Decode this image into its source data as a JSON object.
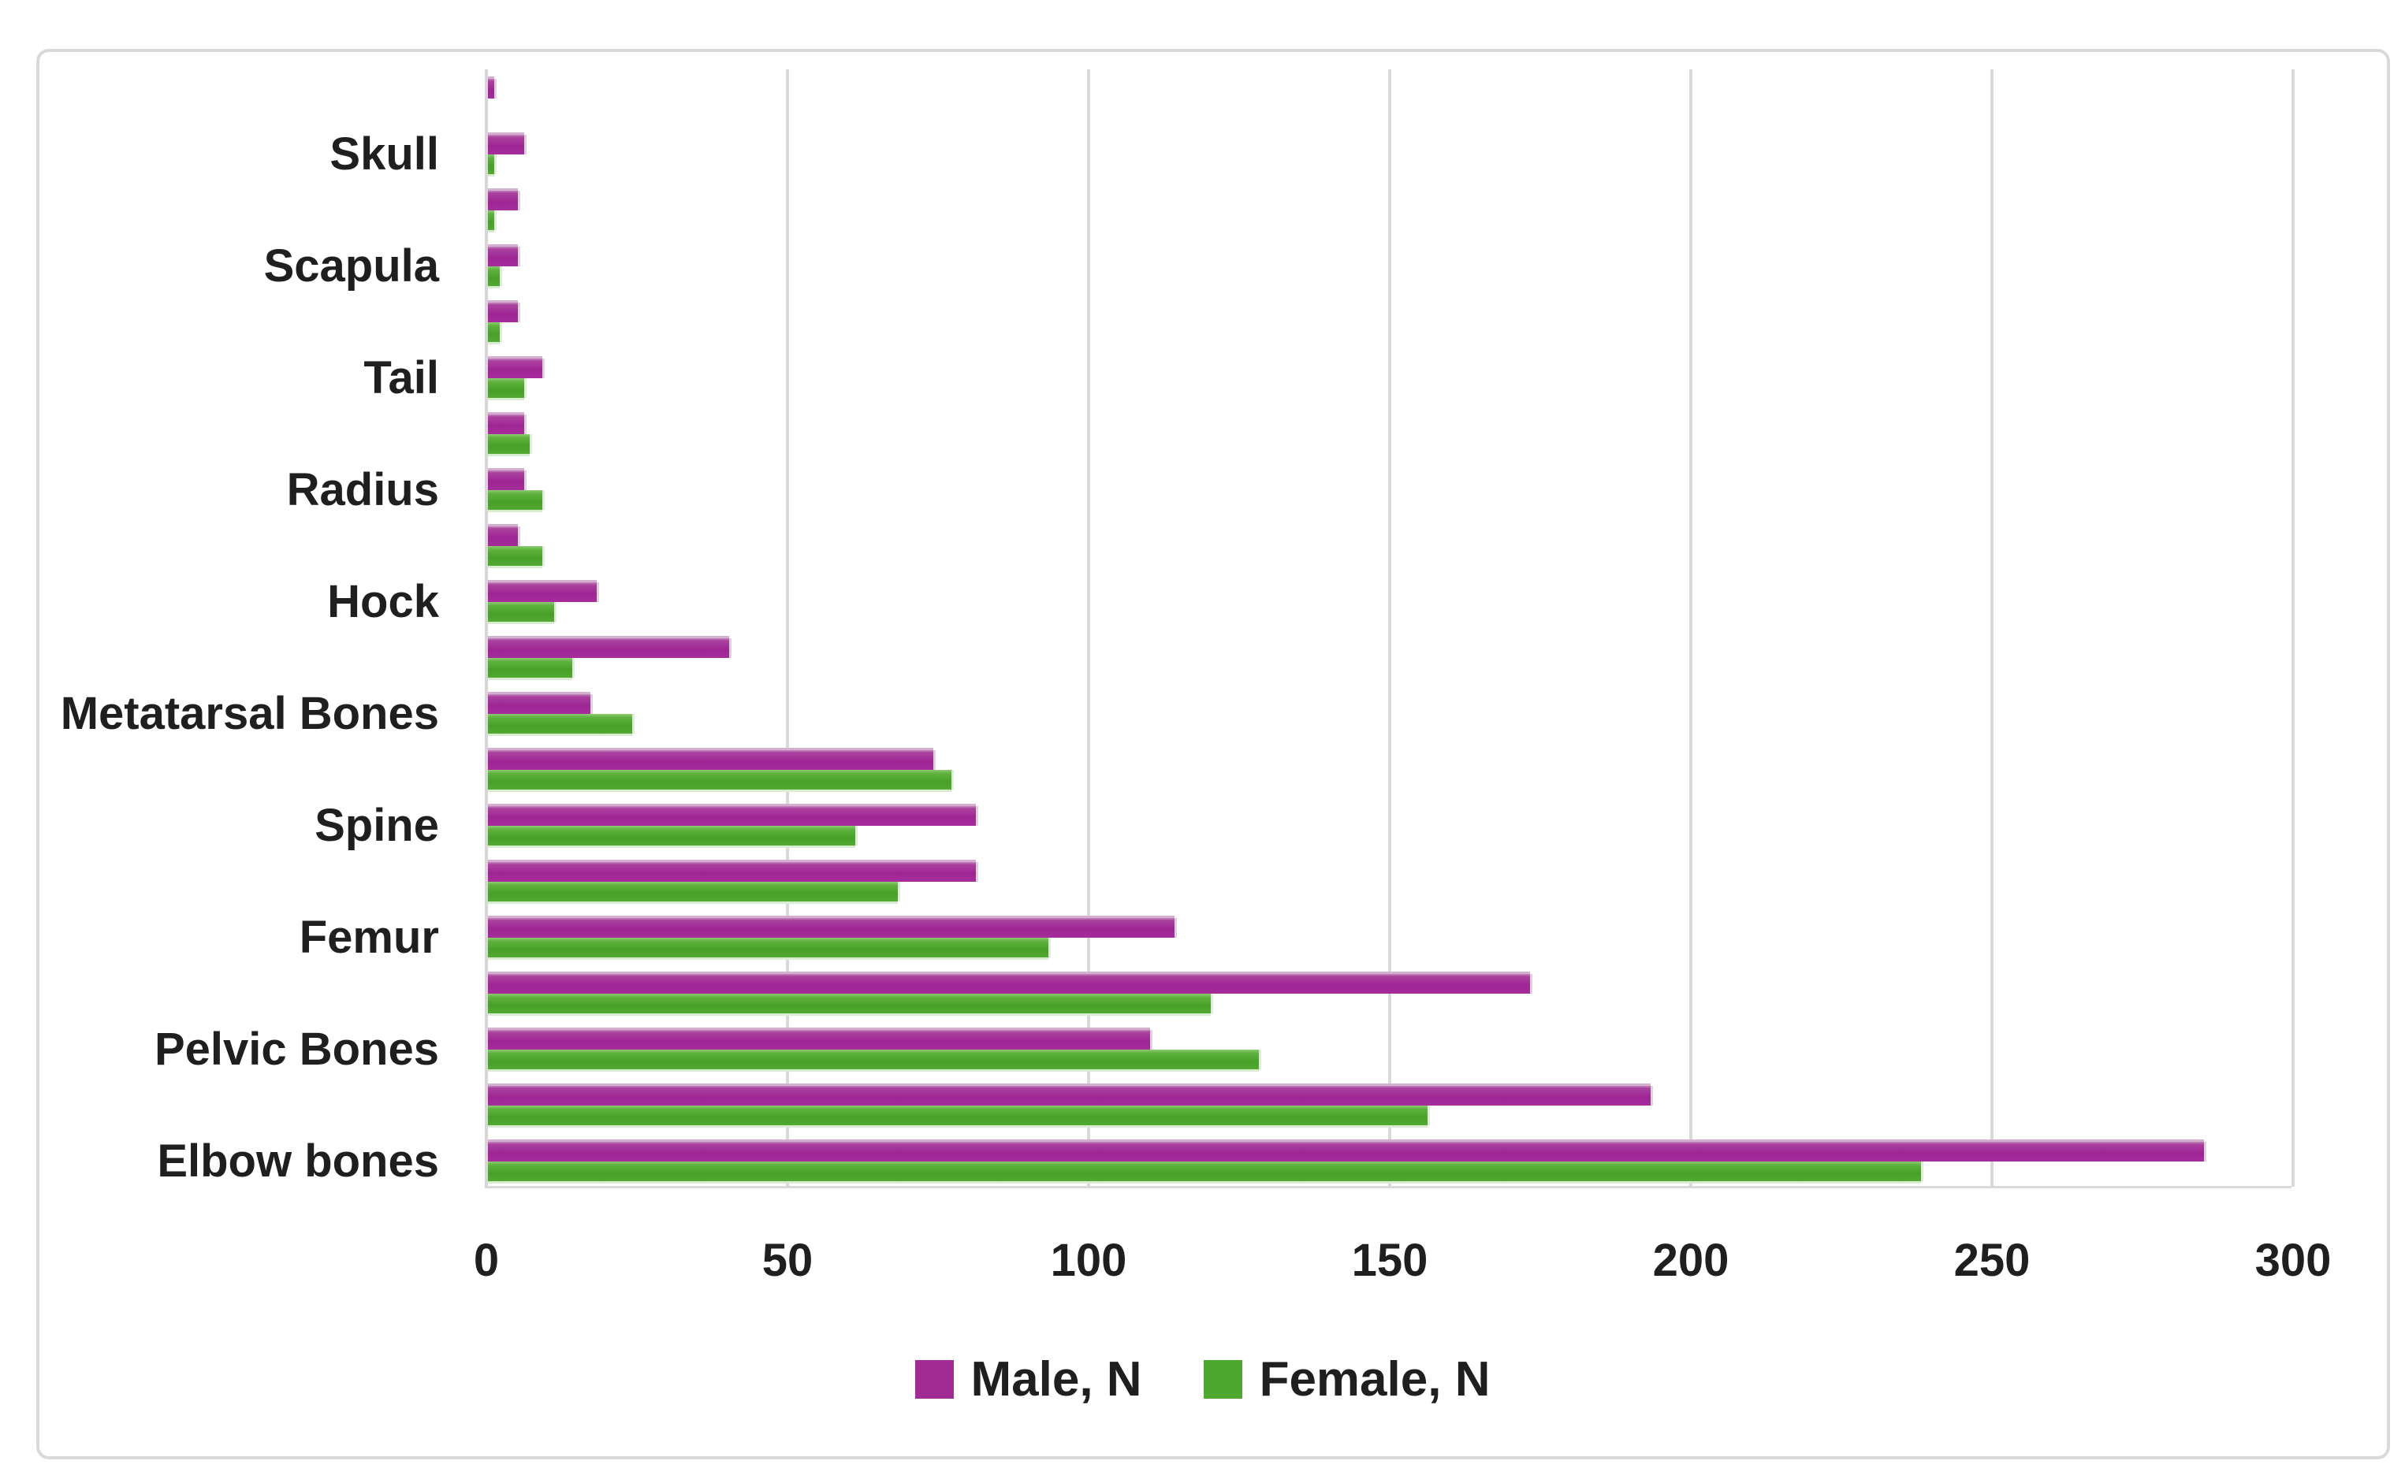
{
  "chart_data": {
    "type": "bar",
    "orientation": "horizontal",
    "title": "",
    "xlabel": "",
    "ylabel": "",
    "xlim": [
      0,
      300
    ],
    "grid": true,
    "legend_position": "bottom",
    "axis_label_interval": 2,
    "series": [
      {
        "name": "Male, N",
        "color": "#A02B93"
      },
      {
        "name": "Female, N",
        "color": "#4EA72E"
      }
    ],
    "x_axis": {
      "ticks": [
        0,
        50,
        100,
        150,
        200,
        250,
        300
      ]
    },
    "categories": [
      {
        "label": "",
        "male": 1,
        "female": 0
      },
      {
        "label": "Skull",
        "male": 6,
        "female": 1
      },
      {
        "label": "",
        "male": 5,
        "female": 1
      },
      {
        "label": "Scapula",
        "male": 5,
        "female": 2
      },
      {
        "label": "",
        "male": 5,
        "female": 2
      },
      {
        "label": "Tail",
        "male": 9,
        "female": 6
      },
      {
        "label": "",
        "male": 6,
        "female": 7
      },
      {
        "label": "Radius",
        "male": 6,
        "female": 9
      },
      {
        "label": "",
        "male": 5,
        "female": 9
      },
      {
        "label": "Hock",
        "male": 18,
        "female": 11
      },
      {
        "label": "",
        "male": 40,
        "female": 14
      },
      {
        "label": "Metatarsal Bones",
        "male": 17,
        "female": 24
      },
      {
        "label": "",
        "male": 74,
        "female": 77
      },
      {
        "label": "Spine",
        "male": 81,
        "female": 61
      },
      {
        "label": "",
        "male": 81,
        "female": 68
      },
      {
        "label": "Femur",
        "male": 114,
        "female": 93
      },
      {
        "label": "",
        "male": 173,
        "female": 120
      },
      {
        "label": "Pelvic Bones",
        "male": 110,
        "female": 128
      },
      {
        "label": "",
        "male": 193,
        "female": 156
      },
      {
        "label": "Elbow bones",
        "male": 285,
        "female": 238
      }
    ]
  }
}
